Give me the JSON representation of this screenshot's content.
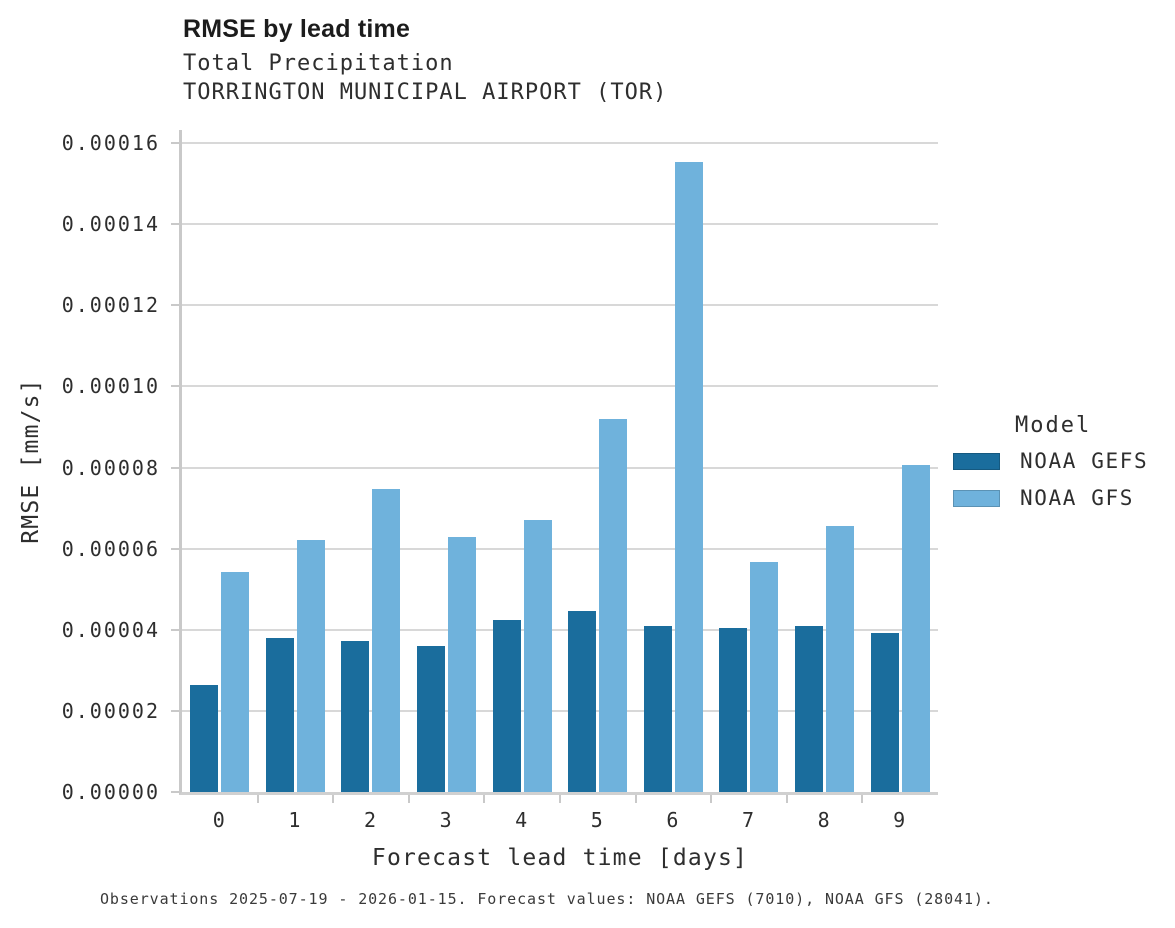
{
  "header": {
    "title": "RMSE by lead time",
    "subtitle1": "Total Precipitation",
    "subtitle2": "TORRINGTON MUNICIPAL AIRPORT (TOR)"
  },
  "chart_data": {
    "type": "bar",
    "title": "RMSE by lead time",
    "subtitle": [
      "Total Precipitation",
      "TORRINGTON MUNICIPAL AIRPORT (TOR)"
    ],
    "categories": [
      "0",
      "1",
      "2",
      "3",
      "4",
      "5",
      "6",
      "7",
      "8",
      "9"
    ],
    "series": [
      {
        "name": "NOAA GEFS",
        "color": "#1a6d9d",
        "values": [
          2.63e-05,
          3.8e-05,
          3.73e-05,
          3.6e-05,
          4.24e-05,
          4.46e-05,
          4.09e-05,
          4.04e-05,
          4.09e-05,
          3.92e-05
        ]
      },
      {
        "name": "NOAA GFS",
        "color": "#6fb2dc",
        "values": [
          5.42e-05,
          6.21e-05,
          7.48e-05,
          6.29e-05,
          6.7e-05,
          9.19e-05,
          0.0001552,
          5.68e-05,
          6.57e-05,
          8.06e-05
        ]
      }
    ],
    "xlabel": "Forecast lead time [days]",
    "ylabel": "RMSE [mm/s]",
    "ylim": [
      0,
      0.0001632
    ],
    "yticks": [
      0,
      2e-05,
      4e-05,
      6e-05,
      8e-05,
      0.0001,
      0.00012,
      0.00014,
      0.00016
    ],
    "ytick_labels": [
      "0.00000",
      "0.00002",
      "0.00004",
      "0.00006",
      "0.00008",
      "0.00010",
      "0.00012",
      "0.00014",
      "0.00016"
    ],
    "grid": "horizontal",
    "gridline_color": "#d8d8d8",
    "legend_position": "right"
  },
  "legend": {
    "title": "Model",
    "entries": [
      {
        "label": "NOAA GEFS",
        "color": "#1a6d9d"
      },
      {
        "label": "NOAA GFS",
        "color": "#6fb2dc"
      }
    ]
  },
  "caption": "Observations 2025-07-19 - 2026-01-15. Forecast values: NOAA GEFS (7010), NOAA GFS (28041)."
}
